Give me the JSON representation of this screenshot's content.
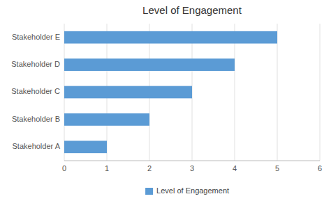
{
  "chart_data": {
    "type": "bar",
    "orientation": "horizontal",
    "title": "Level of Engagement",
    "categories": [
      "Stakeholder A",
      "Stakeholder B",
      "Stakeholder C",
      "Stakeholder D",
      "Stakeholder E"
    ],
    "series": [
      {
        "name": "Level of Engagement",
        "color": "#5B9BD5",
        "values": [
          1,
          2,
          3,
          4,
          5
        ]
      }
    ],
    "xlim": [
      0,
      6
    ],
    "xticks": [
      0,
      1,
      2,
      3,
      4,
      5,
      6
    ],
    "grid": true,
    "legend": "bottom"
  }
}
